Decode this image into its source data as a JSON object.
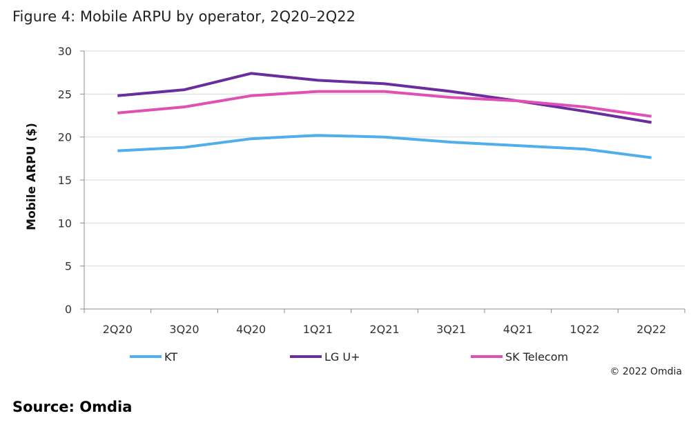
{
  "figure_title": "Figure 4: Mobile ARPU by operator, 2Q20–2Q22",
  "source": "Source: Omdia",
  "copyright": "© 2022 Omdia",
  "chart_data": {
    "type": "line",
    "title": "",
    "xlabel": "",
    "ylabel": "Mobile ARPU ($)",
    "ylim": [
      0,
      30
    ],
    "yticks": [
      0,
      5,
      10,
      15,
      20,
      25,
      30
    ],
    "grid": true,
    "legend_position": "bottom",
    "categories": [
      "2Q20",
      "3Q20",
      "4Q20",
      "1Q21",
      "2Q21",
      "3Q21",
      "4Q21",
      "1Q22",
      "2Q22"
    ],
    "series": [
      {
        "name": "KT",
        "color": "#4FAEEB",
        "values": [
          18.4,
          18.8,
          19.8,
          20.2,
          20.0,
          19.4,
          19.0,
          18.6,
          17.6
        ]
      },
      {
        "name": "LG U+",
        "color": "#6A2C9E",
        "values": [
          24.8,
          25.5,
          27.4,
          26.6,
          26.2,
          25.3,
          24.2,
          23.0,
          21.7
        ]
      },
      {
        "name": "SK Telecom",
        "color": "#E04FB3",
        "values": [
          22.8,
          23.5,
          24.8,
          25.3,
          25.3,
          24.6,
          24.2,
          23.5,
          22.4
        ]
      }
    ]
  }
}
